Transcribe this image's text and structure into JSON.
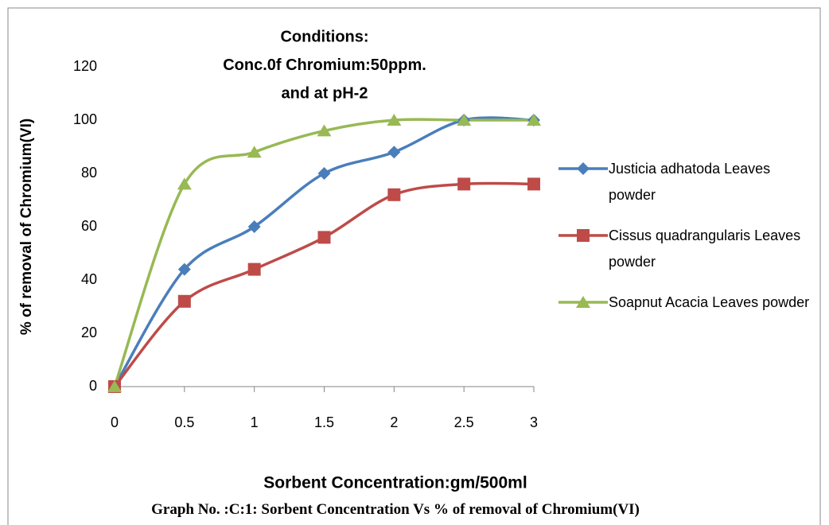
{
  "chart_data": {
    "type": "line",
    "title": [
      "Conditions:",
      "Conc.0f Chromium:50ppm.",
      "and at pH-2"
    ],
    "x_label": "Sorbent Concentration:gm/500ml",
    "y_label": "% of removal of Chromium(VI)",
    "caption": "Graph No. :C:1: Sorbent Concentration Vs % of removal of Chromium(VI)",
    "x": [
      0,
      0.5,
      1,
      1.5,
      2,
      2.5,
      3
    ],
    "xlim": [
      0,
      3
    ],
    "xticks": [
      0,
      0.5,
      1,
      1.5,
      2,
      2.5,
      3
    ],
    "ylim": [
      0,
      120
    ],
    "yticks": [
      0,
      20,
      40,
      60,
      80,
      100,
      120
    ],
    "grid": false,
    "smooth": true,
    "legend": "right",
    "series": [
      {
        "name": "Justicia adhatoda Leaves powder",
        "color": "#4a7ebb",
        "marker": "diamond",
        "values": [
          0,
          44,
          60,
          80,
          88,
          100,
          100
        ]
      },
      {
        "name": "Cissus quadrangularis Leaves powder",
        "color": "#be4b48",
        "marker": "square",
        "values": [
          0,
          32,
          44,
          56,
          72,
          76,
          76
        ]
      },
      {
        "name": "Soapnut Acacia Leaves powder",
        "color": "#98b954",
        "marker": "triangle",
        "values": [
          0,
          76,
          88,
          96,
          100,
          100,
          100
        ]
      }
    ]
  }
}
